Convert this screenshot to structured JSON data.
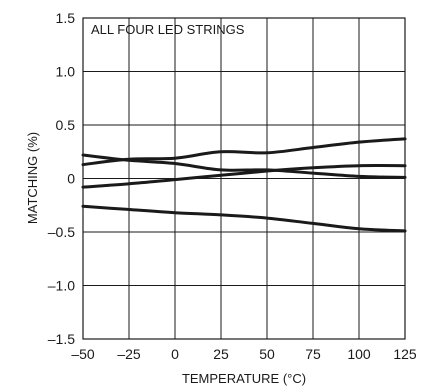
{
  "chart_data": {
    "type": "line",
    "title": "",
    "annotation": "ALL FOUR LED STRINGS",
    "xlabel": "TEMPERATURE (°C)",
    "ylabel": "MATCHING (%)",
    "xlim": [
      -50,
      125
    ],
    "ylim": [
      -1.5,
      1.5
    ],
    "grid": true,
    "x_ticks": [
      -50,
      -25,
      0,
      25,
      50,
      75,
      100,
      125
    ],
    "x_tick_labels": [
      "–50",
      "–25",
      "0",
      "25",
      "50",
      "75",
      "100",
      "125"
    ],
    "y_ticks": [
      1.5,
      1.0,
      0.5,
      0,
      -0.5,
      -1.0,
      -1.5
    ],
    "y_tick_labels": [
      "1.5",
      "1.0",
      "0.5",
      "0",
      "–0.5",
      "–1.0",
      "–1.5"
    ],
    "x": [
      -50,
      -25,
      0,
      25,
      50,
      75,
      100,
      125
    ],
    "series": [
      {
        "values": [
          0.13,
          0.18,
          0.19,
          0.25,
          0.24,
          0.29,
          0.34,
          0.37
        ]
      },
      {
        "values": [
          0.22,
          0.17,
          0.14,
          0.08,
          0.08,
          0.05,
          0.02,
          0.01
        ]
      },
      {
        "values": [
          -0.08,
          -0.05,
          -0.01,
          0.03,
          0.07,
          0.1,
          0.12,
          0.12
        ]
      },
      {
        "values": [
          -0.26,
          -0.29,
          -0.32,
          -0.34,
          -0.37,
          -0.42,
          -0.47,
          -0.49
        ]
      }
    ]
  }
}
